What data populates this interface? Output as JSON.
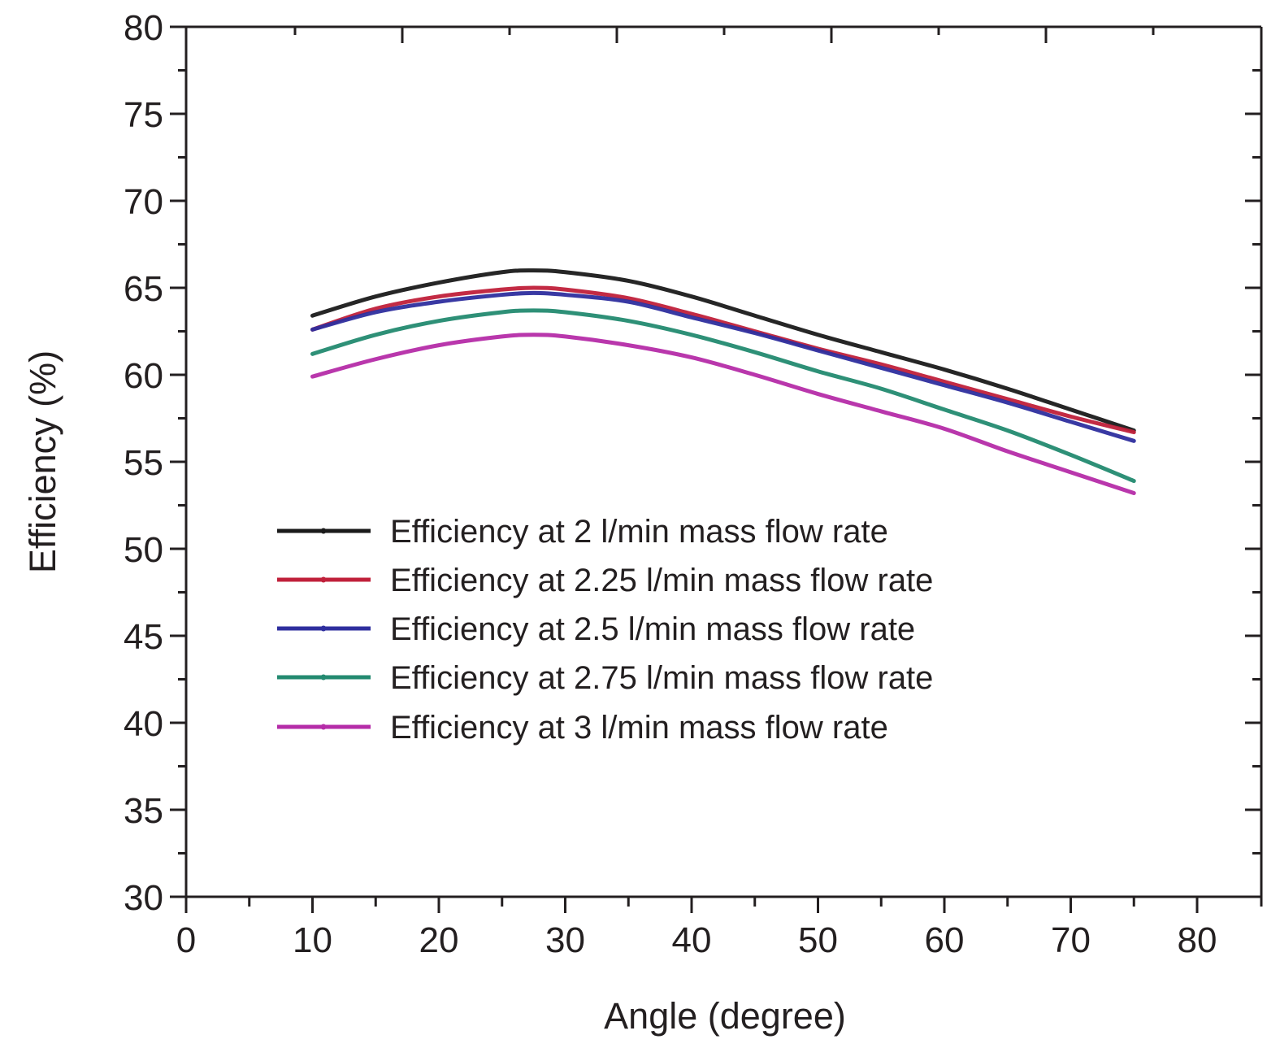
{
  "chart_data": {
    "type": "line",
    "title": "",
    "xlabel": "Angle (degree)",
    "ylabel": "Efficiency (%)",
    "xlim": [
      0,
      85
    ],
    "ylim": [
      30,
      80
    ],
    "xticks": [
      0,
      10,
      20,
      30,
      40,
      50,
      60,
      70,
      80
    ],
    "yticks": [
      30,
      35,
      40,
      45,
      50,
      55,
      60,
      65,
      70,
      75,
      80
    ],
    "grid": false,
    "legend_position": "lower-left",
    "x": [
      10,
      15,
      20,
      25,
      27.5,
      30,
      35,
      40,
      45,
      50,
      55,
      60,
      65,
      70,
      75
    ],
    "series": [
      {
        "name": "Efficiency at 2 l/min mass flow rate",
        "color": "#1a1a1a",
        "values": [
          63.4,
          64.5,
          65.3,
          65.9,
          66.0,
          65.9,
          65.4,
          64.5,
          63.4,
          62.3,
          61.3,
          60.3,
          59.2,
          58.0,
          56.8
        ]
      },
      {
        "name": "Efficiency at 2.25 l/min mass flow rate",
        "color": "#c0203a",
        "values": [
          62.6,
          63.8,
          64.5,
          64.9,
          65.0,
          64.9,
          64.4,
          63.5,
          62.5,
          61.5,
          60.6,
          59.6,
          58.6,
          57.6,
          56.7
        ]
      },
      {
        "name": "Efficiency at 2.5 l/min mass flow rate",
        "color": "#2e2e9e",
        "values": [
          62.6,
          63.6,
          64.2,
          64.6,
          64.7,
          64.6,
          64.2,
          63.3,
          62.4,
          61.4,
          60.4,
          59.4,
          58.4,
          57.3,
          56.2
        ]
      },
      {
        "name": "Efficiency at 2.75 l/min mass flow rate",
        "color": "#238a70",
        "values": [
          61.2,
          62.3,
          63.1,
          63.6,
          63.7,
          63.6,
          63.1,
          62.3,
          61.3,
          60.2,
          59.2,
          58.0,
          56.8,
          55.4,
          53.9
        ]
      },
      {
        "name": "Efficiency at 3 l/min mass flow rate",
        "color": "#b52ca8",
        "values": [
          59.9,
          60.9,
          61.7,
          62.2,
          62.3,
          62.2,
          61.7,
          61.0,
          60.0,
          58.9,
          57.9,
          56.9,
          55.6,
          54.4,
          53.2
        ]
      }
    ]
  }
}
